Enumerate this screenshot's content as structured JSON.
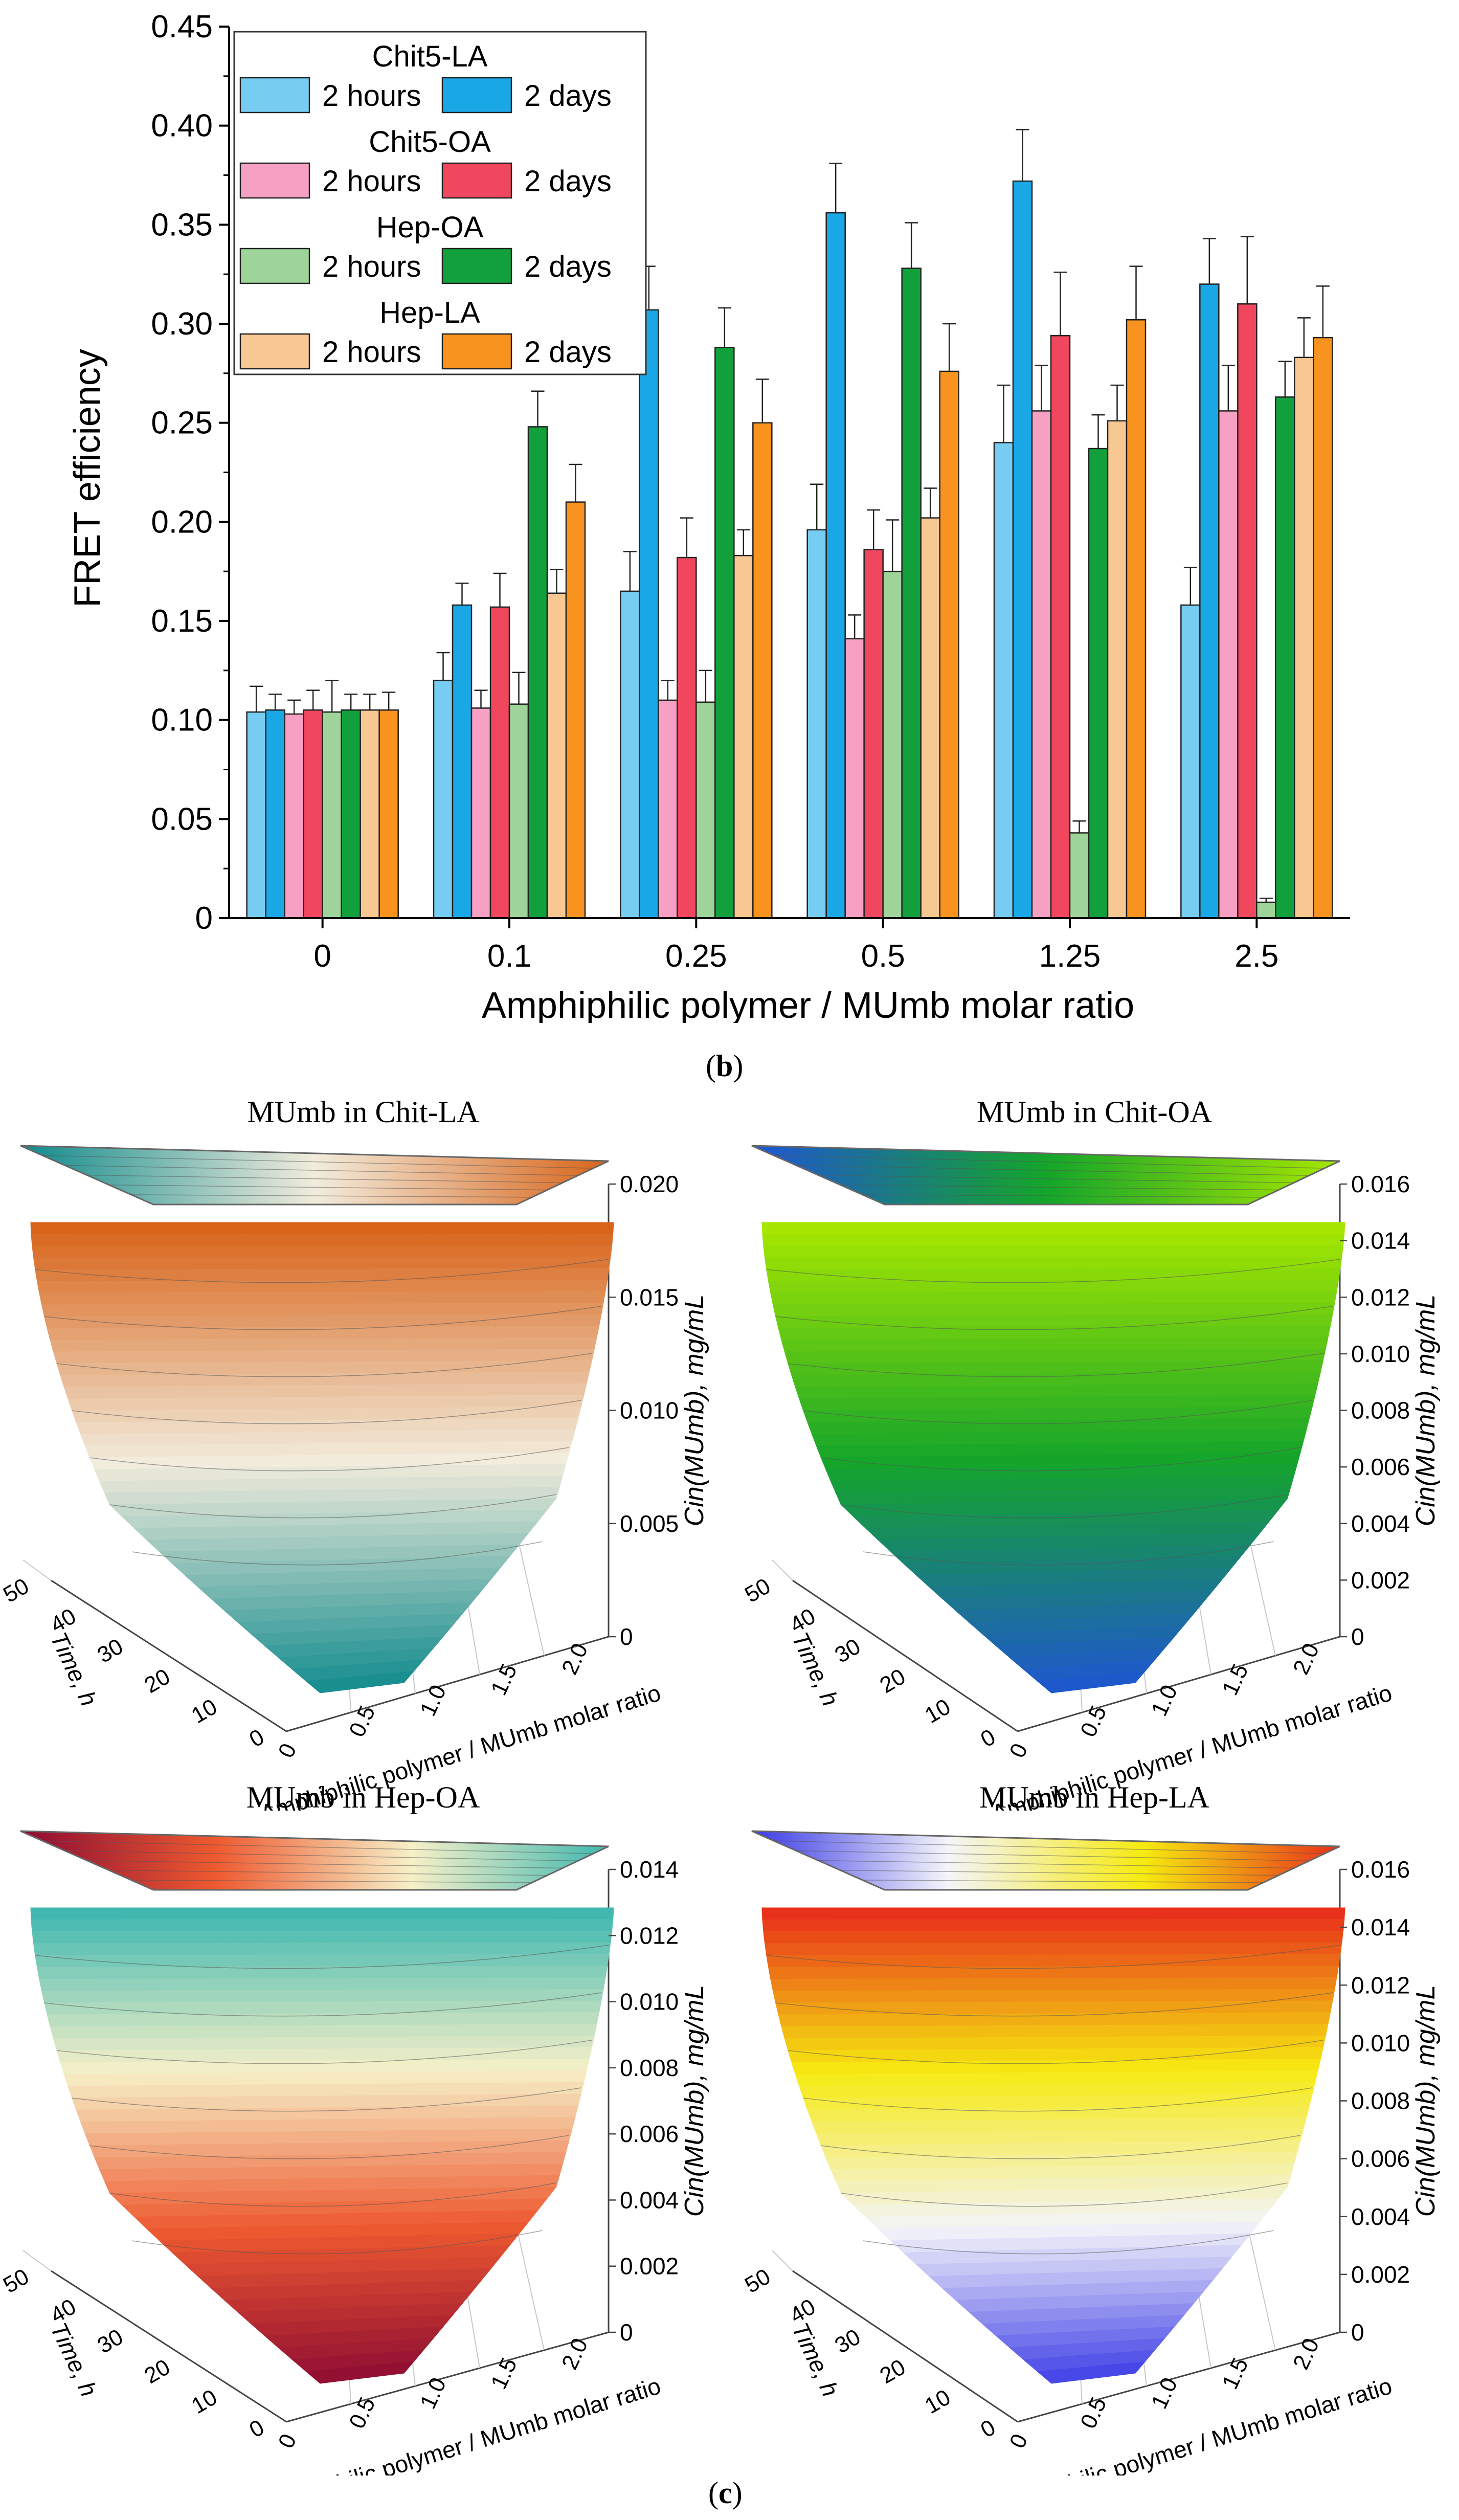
{
  "chart_data": [
    {
      "type": "bar",
      "ylabel": "FRET efficiency",
      "xlabel": "Amphiphilic polymer / MUmb molar ratio",
      "ylim": [
        0,
        0.45
      ],
      "yticks": [
        "0",
        "0.05",
        "0.10",
        "0.15",
        "0.20",
        "0.25",
        "0.30",
        "0.35",
        "0.40",
        "0.45"
      ],
      "categories": [
        "0",
        "0.1",
        "0.25",
        "0.5",
        "1.25",
        "2.5"
      ],
      "legend_groups": [
        "Chit5-LA",
        "Chit5-OA",
        "Hep-OA",
        "Hep-LA"
      ],
      "legend_position": "top-left",
      "series": [
        {
          "name": "Chit5-LA 2 hours",
          "label": "2 hours",
          "group": "Chit5-LA",
          "color": "#76cdf1",
          "values": [
            0.104,
            0.12,
            0.165,
            0.196,
            0.24,
            0.158
          ],
          "errors": [
            0.013,
            0.014,
            0.02,
            0.023,
            0.029,
            0.019
          ]
        },
        {
          "name": "Chit5-LA 2 days",
          "label": "2 days",
          "group": "Chit5-LA",
          "color": "#1aa7e6",
          "values": [
            0.105,
            0.158,
            0.307,
            0.356,
            0.372,
            0.32
          ],
          "errors": [
            0.008,
            0.011,
            0.022,
            0.025,
            0.026,
            0.023
          ]
        },
        {
          "name": "Chit5-OA 2 hours",
          "label": "2 hours",
          "group": "Chit5-OA",
          "color": "#f6a0c4",
          "values": [
            0.103,
            0.106,
            0.11,
            0.141,
            0.256,
            0.256
          ],
          "errors": [
            0.007,
            0.009,
            0.01,
            0.012,
            0.023,
            0.023
          ]
        },
        {
          "name": "Chit5-OA 2 days",
          "label": "2 days",
          "group": "Chit5-OA",
          "color": "#f0465e",
          "values": [
            0.105,
            0.157,
            0.182,
            0.186,
            0.294,
            0.31
          ],
          "errors": [
            0.01,
            0.017,
            0.02,
            0.02,
            0.032,
            0.034
          ]
        },
        {
          "name": "Hep-OA 2 hours",
          "label": "2 hours",
          "group": "Hep-OA",
          "color": "#9ed49a",
          "values": [
            0.104,
            0.108,
            0.109,
            0.175,
            0.043,
            0.008
          ],
          "errors": [
            0.016,
            0.016,
            0.016,
            0.026,
            0.006,
            0.002
          ]
        },
        {
          "name": "Hep-OA 2 days",
          "label": "2 days",
          "group": "Hep-OA",
          "color": "#12a03c",
          "values": [
            0.105,
            0.248,
            0.288,
            0.328,
            0.237,
            0.263
          ],
          "errors": [
            0.008,
            0.018,
            0.02,
            0.023,
            0.017,
            0.018
          ]
        },
        {
          "name": "Hep-LA 2 hours",
          "label": "2 hours",
          "group": "Hep-LA",
          "color": "#f8c893",
          "values": [
            0.105,
            0.164,
            0.183,
            0.202,
            0.251,
            0.283
          ],
          "errors": [
            0.008,
            0.012,
            0.013,
            0.015,
            0.018,
            0.02
          ]
        },
        {
          "name": "Hep-LA 2 days",
          "label": "2 days",
          "group": "Hep-LA",
          "color": "#f7931e",
          "values": [
            0.105,
            0.21,
            0.25,
            0.276,
            0.302,
            0.293
          ],
          "errors": [
            0.009,
            0.019,
            0.022,
            0.024,
            0.027,
            0.026
          ]
        }
      ]
    },
    {
      "type": "surface",
      "title": "MUmb in Chit-LA",
      "zlabel": "Cin(MUmb), mg/mL",
      "xlabel": "Amphiphilic polymer / MUmb molar ratio",
      "ylabel": "Time, h",
      "zticks": [
        "0",
        "0.005",
        "0.010",
        "0.015",
        "0.020"
      ],
      "xticks": [
        "0",
        "0.5",
        "1.0",
        "1.5",
        "2.0"
      ],
      "yticks": [
        "0",
        "10",
        "20",
        "30",
        "40",
        "50"
      ],
      "colors": [
        "#0f8a8c",
        "#f2ecdc",
        "#d8641a"
      ]
    },
    {
      "type": "surface",
      "title": "MUmb in Chit-OA",
      "zlabel": "Cin(MUmb), mg/mL",
      "xlabel": "Amphiphilic polymer / MUmb molar ratio",
      "ylabel": "Time, h",
      "zticks": [
        "0",
        "0.002",
        "0.004",
        "0.006",
        "0.008",
        "0.010",
        "0.012",
        "0.014",
        "0.016"
      ],
      "xticks": [
        "0",
        "0.5",
        "1.0",
        "1.5",
        "2.0"
      ],
      "yticks": [
        "0",
        "10",
        "20",
        "30",
        "40",
        "50"
      ],
      "colors": [
        "#1f55d4",
        "#14a52a",
        "#a6e600"
      ]
    },
    {
      "type": "surface",
      "title": "MUmb in Hep-OA",
      "zlabel": "Cin(MUmb), mg/mL",
      "xlabel": "Amphiphilic polymer / MUmb molar ratio",
      "ylabel": "Time, h",
      "zticks": [
        "0",
        "0.002",
        "0.004",
        "0.006",
        "0.008",
        "0.010",
        "0.012",
        "0.014"
      ],
      "xticks": [
        "0",
        "0.5",
        "1.0",
        "1.5",
        "2.0"
      ],
      "yticks": [
        "0",
        "10",
        "20",
        "30",
        "40",
        "50"
      ],
      "colors": [
        "#8c0a32",
        "#ee5a30",
        "#f6f0c8",
        "#40b8b0"
      ]
    },
    {
      "type": "surface",
      "title": "MUmb in Hep-LA",
      "zlabel": "Cin(MUmb), mg/mL",
      "xlabel": "Amphiphilic polymer / MUmb molar ratio",
      "ylabel": "Time, h",
      "zticks": [
        "0",
        "0.002",
        "0.004",
        "0.006",
        "0.008",
        "0.010",
        "0.012",
        "0.014",
        "0.016"
      ],
      "xticks": [
        "0",
        "0.5",
        "1.0",
        "1.5",
        "2.0"
      ],
      "yticks": [
        "0",
        "10",
        "20",
        "30",
        "40",
        "50"
      ],
      "colors": [
        "#3a3ae6",
        "#f4f4fa",
        "#f6ea10",
        "#e8301a"
      ]
    }
  ],
  "captions": {
    "b": "b",
    "c": "c"
  }
}
